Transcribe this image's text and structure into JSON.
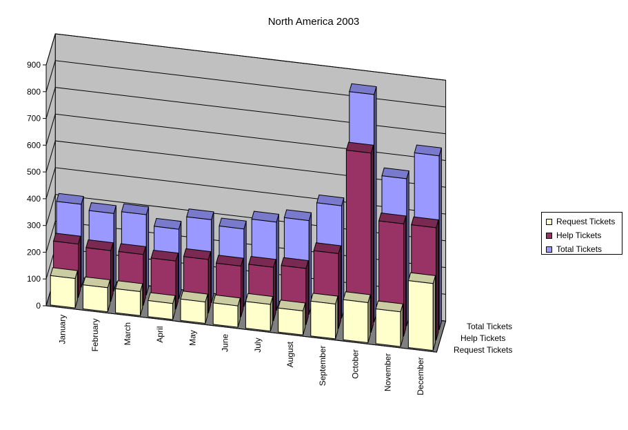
{
  "chart_data": {
    "type": "bar",
    "title": "North America 2003",
    "categories": [
      "January",
      "February",
      "March",
      "April",
      "May",
      "June",
      "July",
      "August",
      "September",
      "October",
      "November",
      "December"
    ],
    "depth_labels": [
      "Total Tickets",
      "Help Tickets",
      "Request Tickets"
    ],
    "series": [
      {
        "name": "Request Tickets",
        "color": "#FFFFCC",
        "values": [
          110,
          90,
          90,
          60,
          80,
          80,
          100,
          90,
          130,
          150,
          130,
          250
        ]
      },
      {
        "name": "Help Tickets",
        "color": "#993366",
        "values": [
          200,
          190,
          190,
          180,
          200,
          190,
          200,
          210,
          280,
          670,
          420,
          420
        ]
      },
      {
        "name": "Total Tickets",
        "color": "#9999FF",
        "values": [
          310,
          290,
          300,
          260,
          310,
          290,
          330,
          350,
          420,
          850,
          550,
          650
        ]
      }
    ],
    "ylim": [
      0,
      900
    ],
    "yticks": [
      0,
      100,
      200,
      300,
      400,
      500,
      600,
      700,
      800,
      900
    ],
    "grid": true,
    "legend_position": "right"
  }
}
